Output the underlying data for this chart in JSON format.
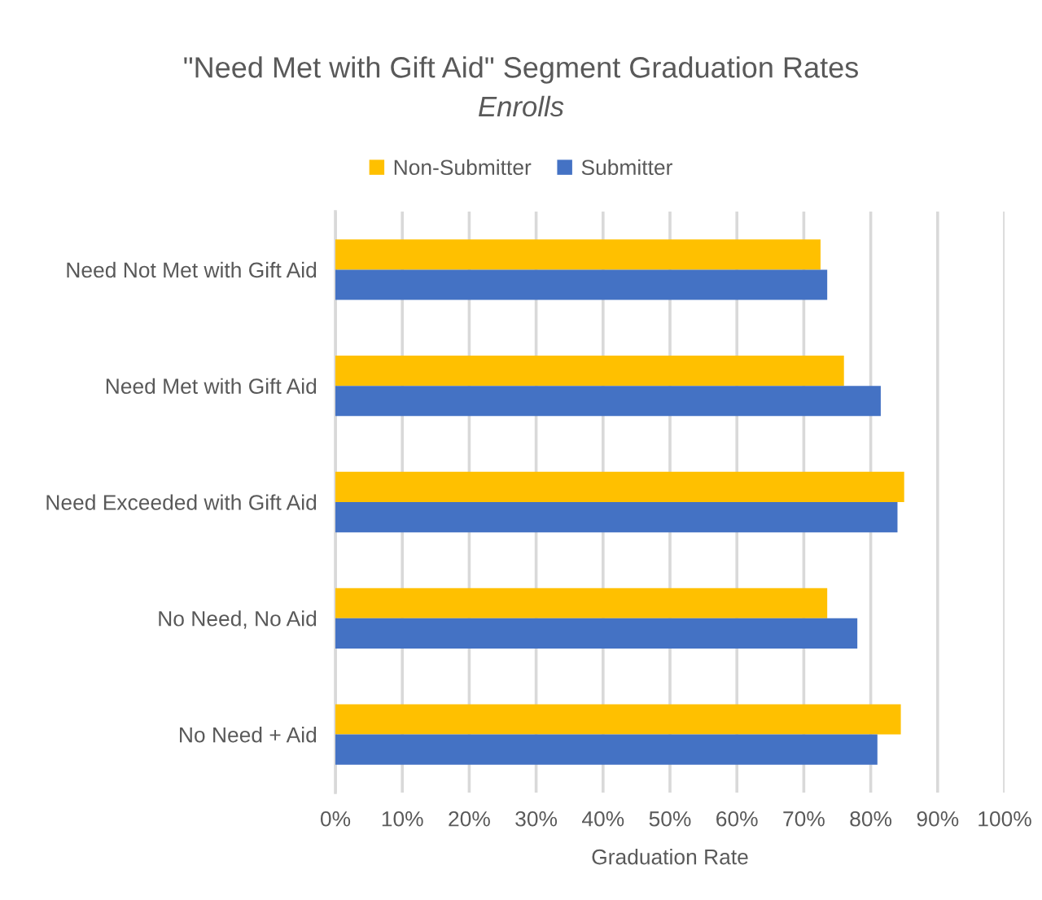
{
  "chart_data": {
    "type": "bar",
    "orientation": "horizontal",
    "title": "\"Need Met with Gift Aid\" Segment Graduation Rates",
    "subtitle": "Enrolls",
    "xlabel": "Graduation Rate",
    "categories": [
      "Need Not Met with Gift Aid",
      "Need Met with Gift Aid",
      "Need Exceeded with Gift Aid",
      "No Need, No Aid",
      "No Need + Aid"
    ],
    "series": [
      {
        "name": "Non-Submitter",
        "color": "#ffc000",
        "values": [
          72.5,
          76,
          85,
          73.5,
          84.5
        ]
      },
      {
        "name": "Submitter",
        "color": "#4472c4",
        "values": [
          73.5,
          81.5,
          84,
          78,
          81
        ]
      }
    ],
    "xlim": [
      0,
      100
    ],
    "xticks": [
      {
        "value": 0,
        "label": "0%"
      },
      {
        "value": 10,
        "label": "10%"
      },
      {
        "value": 20,
        "label": "20%"
      },
      {
        "value": 30,
        "label": "30%"
      },
      {
        "value": 40,
        "label": "40%"
      },
      {
        "value": 50,
        "label": "50%"
      },
      {
        "value": 60,
        "label": "60%"
      },
      {
        "value": 70,
        "label": "70%"
      },
      {
        "value": 80,
        "label": "80%"
      },
      {
        "value": 90,
        "label": "90%"
      },
      {
        "value": 100,
        "label": "100%"
      }
    ],
    "grid": "x",
    "legend": "top"
  }
}
